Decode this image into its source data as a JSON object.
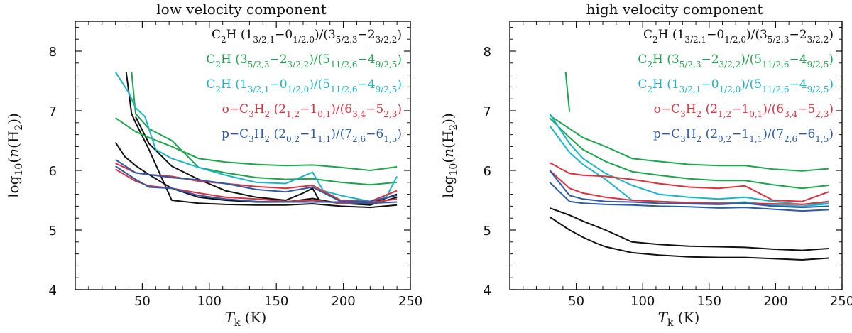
{
  "chart_data": [
    {
      "type": "line",
      "title": "low velocity component",
      "xlabel_italic": "T",
      "xlabel_sub": "k",
      "xlabel_rest": " (K)",
      "ylabel_pre": "log",
      "ylabel_sub": "10",
      "ylabel_mid": "(",
      "ylabel_italic": "n",
      "ylabel_species": "(H",
      "ylabel_species_sub": "2",
      "ylabel_post": "))",
      "xlim": [
        0,
        250
      ],
      "ylim": [
        4,
        8.5
      ],
      "xticks": [
        50,
        100,
        150,
        200,
        250
      ],
      "yticks": [
        4,
        5,
        6,
        7,
        8
      ],
      "series": [
        {
          "name": "C2H (1_3/2,1-0_1/2,0)/(3_5/2,3-2_3/2,2) A",
          "color": "#111111",
          "x": [
            30,
            37,
            45,
            55,
            72,
            92,
            112,
            135,
            157,
            177,
            198,
            220,
            240
          ],
          "y": [
            6.47,
            6.23,
            6.08,
            5.93,
            5.7,
            5.55,
            5.5,
            5.47,
            5.47,
            5.53,
            5.44,
            5.44,
            5.6
          ]
        },
        {
          "name": "C2H (1_3/2,1-0_1/2,0)/(3_5/2,3-2_3/2,2) B",
          "color": "#111111",
          "x": [
            38,
            42,
            45,
            55,
            72,
            92,
            112,
            135,
            157,
            177,
            198,
            220,
            240
          ],
          "y": [
            7.65,
            6.95,
            6.8,
            6.35,
            5.5,
            5.45,
            5.43,
            5.42,
            5.42,
            5.44,
            5.4,
            5.38,
            5.42
          ]
        },
        {
          "name": "C2H (1_3/2,1-0_1/2,0)/(3_5/2,3-2_3/2,2) C",
          "color": "#111111",
          "x": [
            45,
            55,
            72,
            92,
            112,
            135,
            157,
            170,
            177,
            182,
            198,
            220,
            240
          ],
          "y": [
            6.9,
            6.45,
            6.07,
            5.85,
            5.66,
            5.55,
            5.5,
            5.62,
            5.7,
            5.5,
            5.45,
            5.42,
            5.55
          ]
        },
        {
          "name": "C2H (3_5/2,3-2_3/2,2)/(5_11/2,6-4_9/2,5) A",
          "color": "#1aa64b",
          "x": [
            30,
            45,
            55,
            72,
            92,
            112,
            135,
            157,
            177,
            198,
            220,
            240
          ],
          "y": [
            6.88,
            6.65,
            6.55,
            6.4,
            6.2,
            6.14,
            6.1,
            6.08,
            6.09,
            6.05,
            6.0,
            6.06
          ]
        },
        {
          "name": "C2H (3_5/2,3-2_3/2,2)/(5_11/2,6-4_9/2,5) B",
          "color": "#1aa64b",
          "x": [
            42,
            45,
            55,
            72,
            92,
            112,
            135,
            157,
            177,
            198,
            220,
            240
          ],
          "y": [
            7.65,
            6.95,
            6.7,
            6.5,
            6.05,
            5.96,
            5.88,
            5.85,
            5.86,
            5.8,
            5.76,
            5.8
          ]
        },
        {
          "name": "C2H (1_3/2,1-0_1/2,0)/(5_11/2,6-4_9/2,5)",
          "color": "#17b5c9",
          "x": [
            30,
            40,
            45,
            52,
            60,
            72,
            92,
            112,
            135,
            157,
            177,
            185,
            198,
            220,
            232,
            240
          ],
          "y": [
            7.65,
            7.3,
            7.05,
            6.9,
            6.35,
            6.2,
            6.05,
            5.92,
            5.8,
            5.78,
            5.97,
            5.66,
            5.58,
            5.48,
            5.55,
            5.9
          ]
        },
        {
          "name": "o-C3H2 (2_1,2-1_0,1)/(6_3,4-5_2,3) A",
          "color": "#e0303c",
          "x": [
            30,
            45,
            55,
            72,
            92,
            112,
            135,
            157,
            177,
            198,
            220,
            240
          ],
          "y": [
            6.12,
            5.96,
            5.93,
            5.9,
            5.82,
            5.78,
            5.73,
            5.7,
            5.75,
            5.5,
            5.48,
            5.66
          ]
        },
        {
          "name": "o-C3H2 (2_1,2-1_0,1)/(6_3,4-5_2,3) B",
          "color": "#e0303c",
          "x": [
            30,
            45,
            55,
            72,
            92,
            112,
            135,
            157,
            177,
            198,
            220,
            240
          ],
          "y": [
            6.02,
            5.82,
            5.74,
            5.7,
            5.62,
            5.55,
            5.52,
            5.48,
            5.5,
            5.45,
            5.46,
            5.52
          ]
        },
        {
          "name": "p-C3H2 (2_0,2-1_1,1)/(7_2,6-6_1,5) A",
          "color": "#2a5aa8",
          "x": [
            30,
            45,
            55,
            72,
            92,
            112,
            135,
            157,
            177,
            198,
            220,
            240
          ],
          "y": [
            6.18,
            5.96,
            5.93,
            5.88,
            5.84,
            5.78,
            5.68,
            5.64,
            5.72,
            5.48,
            5.48,
            5.58
          ]
        },
        {
          "name": "p-C3H2 (2_0,2-1_1,1)/(7_2,6-6_1,5) B",
          "color": "#2a5aa8",
          "x": [
            30,
            45,
            55,
            72,
            92,
            112,
            135,
            157,
            177,
            198,
            220,
            240
          ],
          "y": [
            6.07,
            5.85,
            5.72,
            5.7,
            5.58,
            5.52,
            5.48,
            5.47,
            5.47,
            5.47,
            5.45,
            5.47
          ]
        }
      ]
    },
    {
      "type": "line",
      "title": "high velocity component",
      "xlabel_italic": "T",
      "xlabel_sub": "k",
      "xlabel_rest": " (K)",
      "ylabel_pre": "log",
      "ylabel_sub": "10",
      "ylabel_mid": "(",
      "ylabel_italic": "n",
      "ylabel_species": "(H",
      "ylabel_species_sub": "2",
      "ylabel_post": "))",
      "xlim": [
        0,
        250
      ],
      "ylim": [
        4,
        8.5
      ],
      "xticks": [
        50,
        100,
        150,
        200,
        250
      ],
      "yticks": [
        4,
        5,
        6,
        7,
        8
      ],
      "series": [
        {
          "name": "C2H (1_3/2,1-0_1/2,0)/(3_5/2,3-2_3/2,2) A",
          "color": "#111111",
          "x": [
            30,
            45,
            55,
            72,
            92,
            112,
            135,
            157,
            177,
            198,
            220,
            240
          ],
          "y": [
            5.37,
            5.25,
            5.15,
            5.0,
            4.8,
            4.76,
            4.73,
            4.72,
            4.71,
            4.68,
            4.66,
            4.69
          ]
        },
        {
          "name": "C2H (1_3/2,1-0_1/2,0)/(3_5/2,3-2_3/2,2) B",
          "color": "#111111",
          "x": [
            30,
            45,
            55,
            65,
            72,
            92,
            112,
            135,
            157,
            177,
            198,
            220,
            240
          ],
          "y": [
            5.22,
            5.0,
            4.88,
            4.78,
            4.72,
            4.62,
            4.58,
            4.55,
            4.54,
            4.54,
            4.52,
            4.5,
            4.53
          ]
        },
        {
          "name": "C2H (3_5/2,3-2_3/2,2)/(5_11/2,6-4_9/2,5) A",
          "color": "#1aa64b",
          "x": [
            30,
            45,
            55,
            72,
            92,
            112,
            135,
            157,
            177,
            198,
            220,
            240
          ],
          "y": [
            6.92,
            6.7,
            6.55,
            6.4,
            6.2,
            6.15,
            6.1,
            6.08,
            6.08,
            6.02,
            5.99,
            6.03
          ]
        },
        {
          "name": "C2H (3_5/2,3-2_3/2,2)/(5_11/2,6-4_9/2,5) B",
          "color": "#1aa64b",
          "x": [
            30,
            45,
            55,
            72,
            92,
            112,
            135,
            157,
            177,
            198,
            220,
            240
          ],
          "y": [
            6.88,
            6.55,
            6.35,
            6.15,
            5.98,
            5.92,
            5.86,
            5.83,
            5.83,
            5.76,
            5.7,
            5.75
          ]
        },
        {
          "name": "C2H (3_5/2,3-2_3/2,2)/(5_11/2,6-4_9/2,5) C",
          "color": "#1aa64b",
          "x": [
            42,
            45
          ],
          "y": [
            7.65,
            6.98
          ]
        },
        {
          "name": "C2H (1_3/2,1-0_1/2,0)/(5_11/2,6-4_9/2,5) A",
          "color": "#17b5c9",
          "x": [
            30,
            45,
            55,
            72,
            92,
            112,
            135,
            157,
            177,
            198,
            220,
            240
          ],
          "y": [
            6.95,
            6.45,
            6.2,
            5.95,
            5.75,
            5.6,
            5.55,
            5.52,
            5.55,
            5.48,
            5.43,
            5.45
          ]
        },
        {
          "name": "C2H (1_3/2,1-0_1/2,0)/(5_11/2,6-4_9/2,5) B",
          "color": "#17b5c9",
          "x": [
            30,
            45,
            55,
            72,
            92,
            112,
            135,
            157,
            177,
            198,
            220,
            240
          ],
          "y": [
            6.75,
            6.3,
            6.1,
            5.85,
            5.5,
            5.48,
            5.46,
            5.45,
            5.47,
            5.42,
            5.4,
            5.44
          ]
        },
        {
          "name": "o-C3H2 (2_1,2-1_0,1)/(6_3,4-5_2,3) A",
          "color": "#e0303c",
          "x": [
            30,
            45,
            55,
            72,
            92,
            112,
            135,
            157,
            177,
            198,
            220,
            240
          ],
          "y": [
            6.13,
            5.95,
            5.92,
            5.9,
            5.85,
            5.78,
            5.72,
            5.7,
            5.74,
            5.5,
            5.48,
            5.64
          ]
        },
        {
          "name": "o-C3H2 (2_1,2-1_0,1)/(6_3,4-5_2,3) B",
          "color": "#e0303c",
          "x": [
            30,
            45,
            55,
            72,
            92,
            112,
            135,
            157,
            177,
            198,
            220,
            240
          ],
          "y": [
            6.0,
            5.7,
            5.62,
            5.55,
            5.5,
            5.48,
            5.46,
            5.45,
            5.45,
            5.44,
            5.43,
            5.48
          ]
        },
        {
          "name": "p-C3H2 (2_0,2-1_1,1)/(7_2,6-6_1,5) A",
          "color": "#2a5aa8",
          "x": [
            30,
            45,
            55,
            72,
            92,
            112,
            135,
            157,
            177,
            198,
            220,
            240
          ],
          "y": [
            6.0,
            5.58,
            5.52,
            5.48,
            5.47,
            5.45,
            5.44,
            5.43,
            5.45,
            5.4,
            5.38,
            5.4
          ]
        },
        {
          "name": "p-C3H2 (2_0,2-1_1,1)/(7_2,6-6_1,5) B",
          "color": "#2a5aa8",
          "x": [
            30,
            45,
            55,
            72,
            92,
            112,
            135,
            157,
            177,
            198,
            220,
            240
          ],
          "y": [
            5.8,
            5.48,
            5.45,
            5.43,
            5.42,
            5.4,
            5.39,
            5.37,
            5.38,
            5.35,
            5.32,
            5.34
          ]
        }
      ]
    }
  ],
  "legend": [
    {
      "label": "C2H (1_3/2,1-0_1/2,0)/(3_5/2,3-2_3/2,2)",
      "color": "#111111",
      "parts": [
        [
          "t",
          "C"
        ],
        [
          "b",
          "2"
        ],
        [
          "t",
          "H (1"
        ],
        [
          "b",
          "3/2,1"
        ],
        [
          "t",
          "−0"
        ],
        [
          "b",
          "1/2,0"
        ],
        [
          "t",
          ")/(3"
        ],
        [
          "b",
          "5/2,3"
        ],
        [
          "t",
          "−2"
        ],
        [
          "b",
          "3/2,2"
        ],
        [
          "t",
          ")"
        ]
      ]
    },
    {
      "label": "C2H (3_5/2,3-2_3/2,2)/(5_11/2,6-4_9/2,5)",
      "color": "#1aa64b",
      "parts": [
        [
          "t",
          "C"
        ],
        [
          "b",
          "2"
        ],
        [
          "t",
          "H (3"
        ],
        [
          "b",
          "5/2,3"
        ],
        [
          "t",
          "−2"
        ],
        [
          "b",
          "3/2,2"
        ],
        [
          "t",
          ")/(5"
        ],
        [
          "b",
          "11/2,6"
        ],
        [
          "t",
          "−4"
        ],
        [
          "b",
          "9/2,5"
        ],
        [
          "t",
          ")"
        ]
      ]
    },
    {
      "label": "C2H (1_3/2,1-0_1/2,0)/(5_11/2,6-4_9/2,5)",
      "color": "#17b5c9",
      "parts": [
        [
          "t",
          "C"
        ],
        [
          "b",
          "2"
        ],
        [
          "t",
          "H (1"
        ],
        [
          "b",
          "3/2,1"
        ],
        [
          "t",
          "−0"
        ],
        [
          "b",
          "1/2,0"
        ],
        [
          "t",
          ")/(5"
        ],
        [
          "b",
          "11/2,6"
        ],
        [
          "t",
          "−4"
        ],
        [
          "b",
          "9/2,5"
        ],
        [
          "t",
          ")"
        ]
      ]
    },
    {
      "label": "o-C3H2 (2_1,2-1_0,1)/(6_3,4-5_2,3)",
      "color": "#e0303c",
      "parts": [
        [
          "t",
          "o−C"
        ],
        [
          "b",
          "3"
        ],
        [
          "t",
          "H"
        ],
        [
          "b",
          "2"
        ],
        [
          "t",
          " (2"
        ],
        [
          "b",
          "1,2"
        ],
        [
          "t",
          "−1"
        ],
        [
          "b",
          "0,1"
        ],
        [
          "t",
          ")/(6"
        ],
        [
          "b",
          "3,4"
        ],
        [
          "t",
          "−5"
        ],
        [
          "b",
          "2,3"
        ],
        [
          "t",
          ")"
        ]
      ]
    },
    {
      "label": "p-C3H2 (2_0,2-1_1,1)/(7_2,6-6_1,5)",
      "color": "#2a5aa8",
      "parts": [
        [
          "t",
          "p−C"
        ],
        [
          "b",
          "3"
        ],
        [
          "t",
          "H"
        ],
        [
          "b",
          "2"
        ],
        [
          "t",
          " (2"
        ],
        [
          "b",
          "0,2"
        ],
        [
          "t",
          "−1"
        ],
        [
          "b",
          "1,1"
        ],
        [
          "t",
          ")/(7"
        ],
        [
          "b",
          "2,6"
        ],
        [
          "t",
          "−6"
        ],
        [
          "b",
          "1,5"
        ],
        [
          "t",
          ")"
        ]
      ]
    }
  ]
}
